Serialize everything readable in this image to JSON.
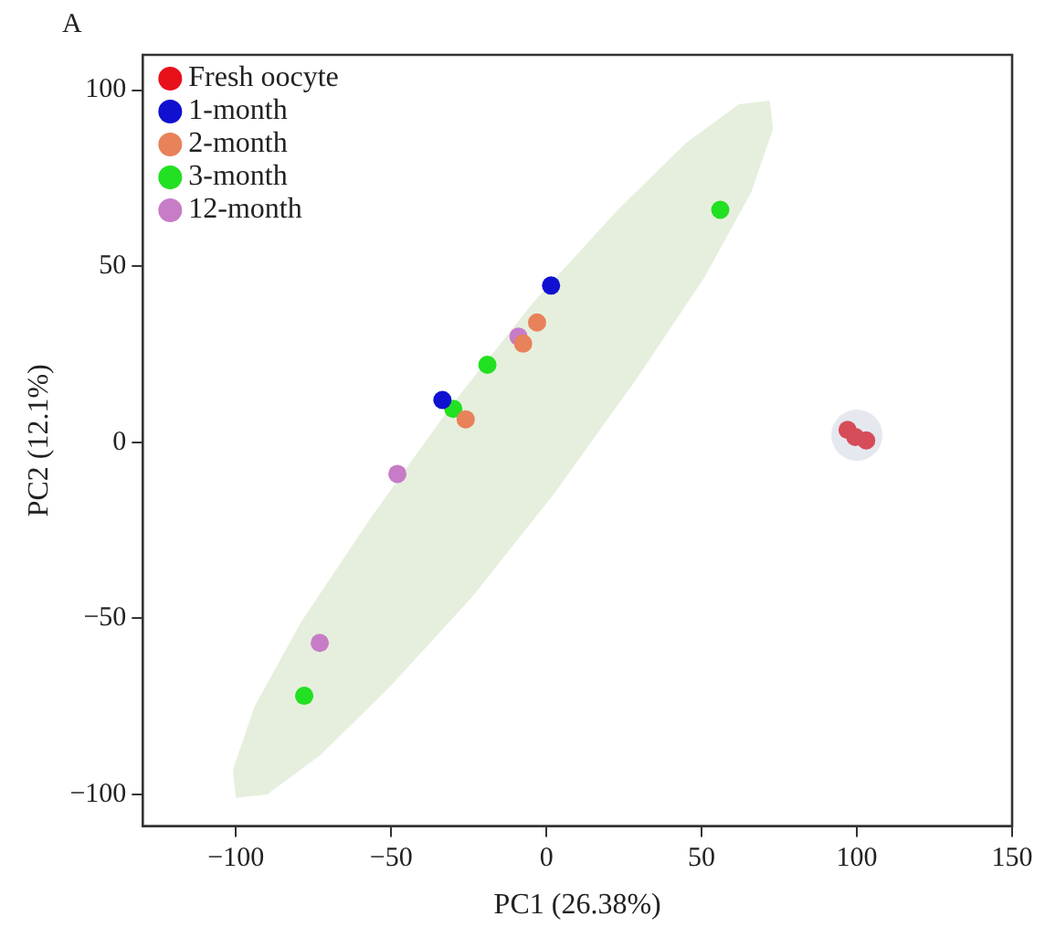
{
  "chart_data": {
    "type": "scatter",
    "title": "A",
    "xlabel": "PC1 (26.38%)",
    "ylabel": "PC2 (12.1%)",
    "xlim": [
      -130,
      150
    ],
    "xticks": [
      {
        "value": -100,
        "label": "−100"
      },
      {
        "value": -50,
        "label": "−50"
      },
      0,
      50,
      100,
      150
    ],
    "ylim": [
      -109,
      110
    ],
    "yticks": [
      {
        "value": -100,
        "label": "−100"
      },
      {
        "value": -50,
        "label": "−50"
      },
      0,
      50,
      100
    ],
    "grid": false,
    "legend": "top left",
    "marker": "circle",
    "series": [
      {
        "name": "Fresh oocyte",
        "color": "#e8101a",
        "x": [
          97,
          99.5,
          103
        ],
        "values": [
          3.5,
          1.5,
          0.5
        ]
      },
      {
        "name": "1-month",
        "color": "#1010d0",
        "x": [
          1.5,
          -33.5
        ],
        "values": [
          44.5,
          12
        ]
      },
      {
        "name": "2-month",
        "color": "#e8825a",
        "x": [
          -3,
          -7.5,
          -26
        ],
        "values": [
          34,
          28,
          6.5
        ]
      },
      {
        "name": "3-month",
        "color": "#22e022",
        "x": [
          56,
          -30,
          -19,
          -78
        ],
        "values": [
          66,
          9.5,
          22,
          -72
        ]
      },
      {
        "name": "12-month",
        "color": "#c77cc7",
        "x": [
          -9,
          -19,
          -48,
          -73
        ],
        "values": [
          30,
          null,
          -9,
          -57
        ]
      },
      {
        "type": "area",
        "marker": "none",
        "color": "#e6efdd",
        "x": [
          72,
          73,
          66,
          51,
          29,
          3,
          -24,
          -51,
          -73,
          -90,
          -100,
          -101,
          -94,
          -79,
          -57,
          -31,
          -4,
          23,
          45,
          62,
          72
        ],
        "values": [
          97,
          89,
          71,
          47,
          18,
          -14,
          -44,
          -70,
          -89,
          -100,
          -101,
          -93,
          -75,
          -51,
          -22,
          10,
          40,
          66,
          85,
          96,
          97
        ]
      }
    ]
  }
}
